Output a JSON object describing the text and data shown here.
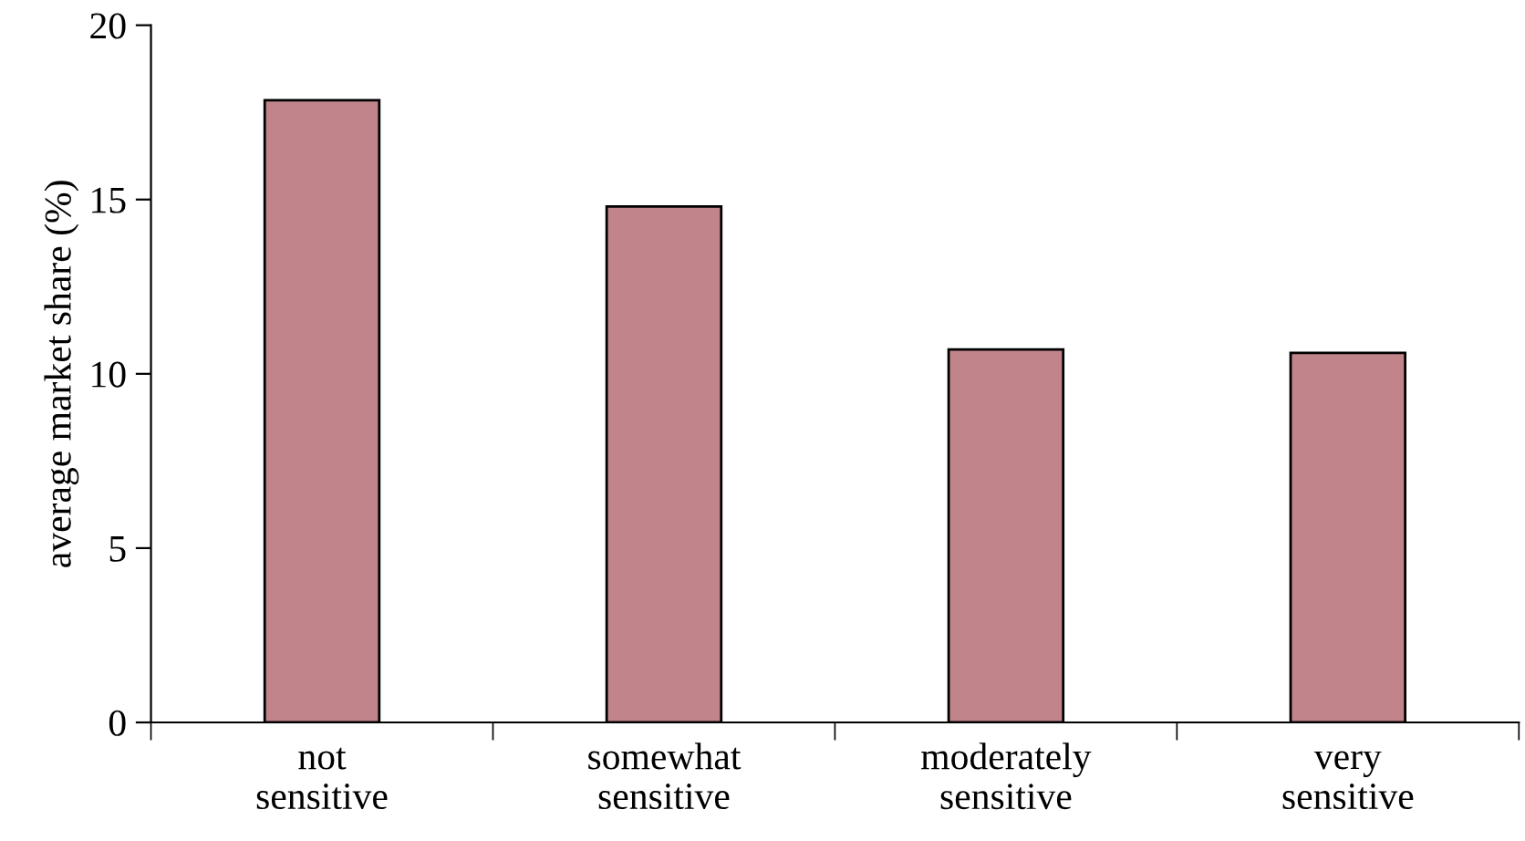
{
  "chart_data": {
    "type": "bar",
    "categories": [
      "not sensitive",
      "somewhat sensitive",
      "moderately sensitive",
      "very sensitive"
    ],
    "values": [
      17.85,
      14.8,
      10.7,
      10.6
    ],
    "color": "#c0848a",
    "ylabel": "average market share (%)",
    "ylim": [
      0,
      20
    ],
    "yticks": [
      0,
      5,
      10,
      15,
      20
    ],
    "grid": false,
    "legend": false
  }
}
